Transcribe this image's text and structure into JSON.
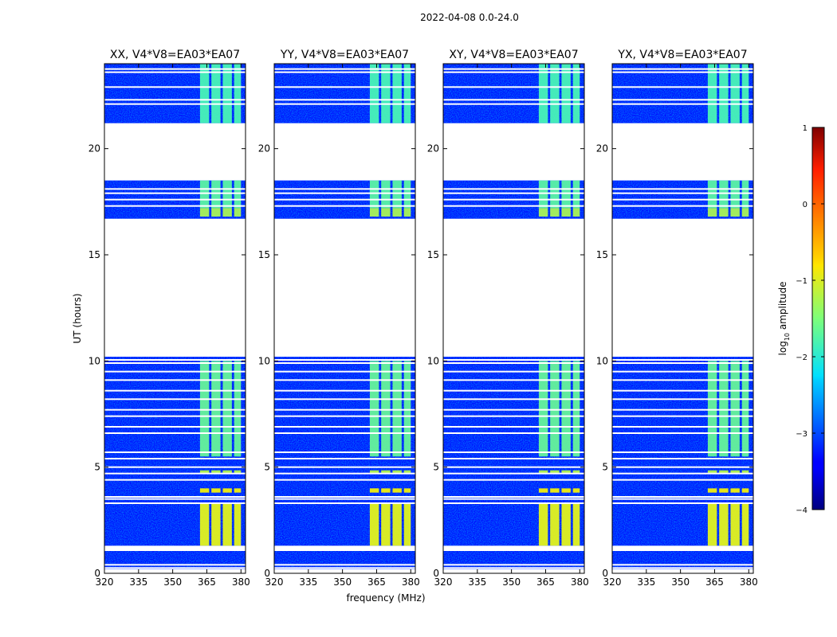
{
  "figure": {
    "suptitle": "2022-04-08 0.0-24.0",
    "colorbar_label_prefix": "log",
    "colorbar_label_sub": "10",
    "colorbar_label_suffix": " amplitude"
  },
  "chart_data": {
    "type": "heatmap",
    "title": "2022-04-08 0.0-24.0",
    "xlabel": "frequency (MHz)",
    "ylabel": "UT (hours)",
    "xlim": [
      320,
      382
    ],
    "ylim": [
      0,
      24
    ],
    "xticks": [
      320,
      335,
      350,
      365,
      380
    ],
    "yticks": [
      0,
      5,
      10,
      15,
      20
    ],
    "colorbar": {
      "label": "log10 amplitude",
      "min": -4,
      "max": 1,
      "ticks": [
        1,
        0,
        -1,
        -2,
        -3,
        -4
      ],
      "colormap": "jet"
    },
    "panels": [
      {
        "title": "XX, V4*V8=EA03*EA07",
        "polarization": "XX"
      },
      {
        "title": "YY, V4*V8=EA03*EA07",
        "polarization": "YY"
      },
      {
        "title": "XY, V4*V8=EA03*EA07",
        "polarization": "XY"
      },
      {
        "title": "YX, V4*V8=EA03*EA07",
        "polarization": "YX"
      }
    ],
    "data_blocks_hours": [
      [
        0.2,
        1.05
      ],
      [
        1.3,
        10.2
      ],
      [
        16.7,
        18.5
      ],
      [
        21.2,
        24.0
      ]
    ],
    "blank_gaps_hours": [
      [
        10.2,
        16.7
      ],
      [
        18.5,
        21.2
      ]
    ],
    "flagged_rows_hours": [
      0.25,
      0.4,
      1.2,
      1.25,
      3.3,
      3.5,
      3.6,
      4.4,
      4.7,
      5.0,
      5.4,
      5.7,
      6.6,
      6.9,
      7.4,
      7.7,
      8.2,
      8.6,
      9.1,
      9.5,
      9.9,
      10.05,
      17.3,
      17.6,
      17.9,
      18.1,
      22.1,
      22.3,
      22.9,
      23.6,
      23.75
    ],
    "rfi_channels_mhz": [
      {
        "from": 362,
        "to": 366,
        "amplitude_log10": -1.0
      },
      {
        "from": 367,
        "to": 371,
        "amplitude_log10": -1.0
      },
      {
        "from": 372,
        "to": 376,
        "amplitude_log10": -1.0
      },
      {
        "from": 377,
        "to": 380,
        "amplitude_log10": -1.0
      }
    ],
    "rfi_time_ranges": [
      {
        "from": 1.3,
        "to": 3.3,
        "amplitude_log10": -0.9
      },
      {
        "from": 3.8,
        "to": 4.0,
        "amplitude_log10": -0.7
      },
      {
        "from": 4.7,
        "to": 4.85,
        "amplitude_log10": -1.4
      },
      {
        "from": 5.5,
        "to": 10.0,
        "amplitude_log10": -2.2
      },
      {
        "from": 16.8,
        "to": 17.2,
        "amplitude_log10": -1.5
      },
      {
        "from": 17.2,
        "to": 18.5,
        "amplitude_log10": -2.3
      },
      {
        "from": 21.2,
        "to": 24.0,
        "amplitude_log10": -2.5
      }
    ],
    "background_amplitude_log10": -3.3
  }
}
